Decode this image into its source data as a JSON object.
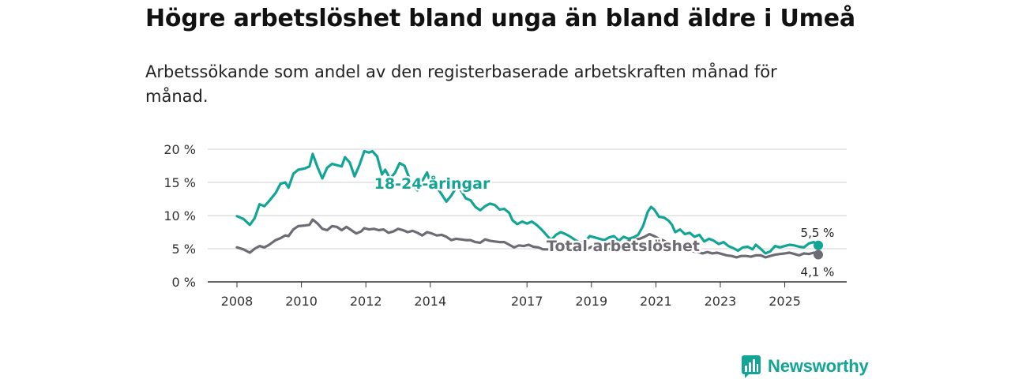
{
  "title": "Högre arbetslöshet bland unga än bland äldre i Umeå",
  "subtitle": "Arbetssökande som andel av den registerbaserade arbetskraften månad för månad.",
  "brand": {
    "name": "Newsworthy",
    "color": "#12a595"
  },
  "chart_data": {
    "type": "line",
    "title": "Högre arbetslöshet bland unga än bland äldre i Umeå",
    "xlabel": "",
    "ylabel": "",
    "x_range": [
      2008.0,
      2026.04
    ],
    "ylim": [
      0,
      20
    ],
    "yticks": [
      0,
      5,
      10,
      15,
      20
    ],
    "ytick_labels": [
      "0 %",
      "5 %",
      "10 %",
      "15 %",
      "20 %"
    ],
    "xticks": [
      2008,
      2010,
      2012,
      2014,
      2017,
      2019,
      2021,
      2023,
      2025
    ],
    "xtick_labels": [
      "2008",
      "2010",
      "2012",
      "2014",
      "2017",
      "2019",
      "2021",
      "2023",
      "2025"
    ],
    "grid": true,
    "series": [
      {
        "name": "18-24-åringar",
        "label": "18-24-åringar",
        "color": "#12a595",
        "end_label": "5,5 %",
        "end_value": 5.5,
        "points": [
          [
            2008.0,
            9.9
          ],
          [
            2008.2,
            9.5
          ],
          [
            2008.4,
            8.6
          ],
          [
            2008.55,
            9.6
          ],
          [
            2008.7,
            11.7
          ],
          [
            2008.85,
            11.4
          ],
          [
            2009.0,
            12.2
          ],
          [
            2009.2,
            13.4
          ],
          [
            2009.35,
            14.8
          ],
          [
            2009.5,
            15.0
          ],
          [
            2009.6,
            14.2
          ],
          [
            2009.75,
            16.3
          ],
          [
            2009.9,
            16.9
          ],
          [
            2010.1,
            17.1
          ],
          [
            2010.25,
            17.4
          ],
          [
            2010.35,
            19.3
          ],
          [
            2010.5,
            17.3
          ],
          [
            2010.65,
            15.6
          ],
          [
            2010.8,
            17.2
          ],
          [
            2010.95,
            17.8
          ],
          [
            2011.1,
            17.6
          ],
          [
            2011.25,
            17.4
          ],
          [
            2011.35,
            18.8
          ],
          [
            2011.5,
            18.0
          ],
          [
            2011.65,
            15.9
          ],
          [
            2011.8,
            17.6
          ],
          [
            2011.95,
            19.7
          ],
          [
            2012.1,
            19.5
          ],
          [
            2012.2,
            19.7
          ],
          [
            2012.35,
            18.9
          ],
          [
            2012.5,
            16.2
          ],
          [
            2012.6,
            16.9
          ],
          [
            2012.75,
            15.6
          ],
          [
            2012.9,
            16.4
          ],
          [
            2013.05,
            17.9
          ],
          [
            2013.2,
            17.5
          ],
          [
            2013.35,
            15.6
          ],
          [
            2013.5,
            14.4
          ],
          [
            2013.6,
            13.8
          ],
          [
            2013.75,
            15.2
          ],
          [
            2013.9,
            16.5
          ],
          [
            2014.0,
            15.0
          ],
          [
            2014.2,
            14.3
          ],
          [
            2014.35,
            13.2
          ],
          [
            2014.5,
            12.1
          ],
          [
            2014.65,
            13.0
          ],
          [
            2014.8,
            14.2
          ],
          [
            2014.95,
            13.8
          ],
          [
            2015.1,
            12.6
          ],
          [
            2015.25,
            12.3
          ],
          [
            2015.4,
            11.3
          ],
          [
            2015.55,
            10.8
          ],
          [
            2015.7,
            11.4
          ],
          [
            2015.85,
            11.8
          ],
          [
            2016.0,
            11.6
          ],
          [
            2016.15,
            10.9
          ],
          [
            2016.3,
            11.0
          ],
          [
            2016.45,
            10.4
          ],
          [
            2016.55,
            9.3
          ],
          [
            2016.7,
            8.7
          ],
          [
            2016.85,
            9.1
          ],
          [
            2017.0,
            8.8
          ],
          [
            2017.15,
            9.1
          ],
          [
            2017.3,
            8.6
          ],
          [
            2017.45,
            7.9
          ],
          [
            2017.6,
            7.1
          ],
          [
            2017.75,
            6.3
          ],
          [
            2017.9,
            7.1
          ],
          [
            2018.05,
            7.5
          ],
          [
            2018.2,
            7.2
          ],
          [
            2018.35,
            6.8
          ],
          [
            2018.5,
            6.3
          ],
          [
            2018.65,
            5.9
          ],
          [
            2018.8,
            6.1
          ],
          [
            2018.95,
            6.9
          ],
          [
            2019.1,
            6.7
          ],
          [
            2019.25,
            6.5
          ],
          [
            2019.4,
            6.3
          ],
          [
            2019.55,
            6.7
          ],
          [
            2019.7,
            6.9
          ],
          [
            2019.85,
            6.2
          ],
          [
            2020.0,
            6.8
          ],
          [
            2020.15,
            6.5
          ],
          [
            2020.3,
            6.7
          ],
          [
            2020.45,
            7.1
          ],
          [
            2020.6,
            8.4
          ],
          [
            2020.75,
            10.6
          ],
          [
            2020.85,
            11.3
          ],
          [
            2020.95,
            10.9
          ],
          [
            2021.1,
            9.8
          ],
          [
            2021.25,
            9.7
          ],
          [
            2021.4,
            9.2
          ],
          [
            2021.5,
            8.6
          ],
          [
            2021.6,
            7.5
          ],
          [
            2021.75,
            7.9
          ],
          [
            2021.9,
            7.2
          ],
          [
            2022.05,
            7.4
          ],
          [
            2022.2,
            6.8
          ],
          [
            2022.35,
            7.1
          ],
          [
            2022.5,
            6.1
          ],
          [
            2022.65,
            6.5
          ],
          [
            2022.8,
            6.2
          ],
          [
            2022.95,
            5.7
          ],
          [
            2023.1,
            6.0
          ],
          [
            2023.25,
            5.4
          ],
          [
            2023.4,
            5.1
          ],
          [
            2023.55,
            4.7
          ],
          [
            2023.7,
            5.2
          ],
          [
            2023.85,
            5.3
          ],
          [
            2024.0,
            4.9
          ],
          [
            2024.1,
            5.6
          ],
          [
            2024.25,
            5.0
          ],
          [
            2024.4,
            4.3
          ],
          [
            2024.55,
            4.6
          ],
          [
            2024.7,
            5.4
          ],
          [
            2024.85,
            5.2
          ],
          [
            2025.0,
            5.4
          ],
          [
            2025.15,
            5.6
          ],
          [
            2025.3,
            5.5
          ],
          [
            2025.45,
            5.3
          ],
          [
            2025.6,
            5.2
          ],
          [
            2025.75,
            5.8
          ],
          [
            2025.9,
            6.0
          ],
          [
            2026.04,
            5.5
          ]
        ]
      },
      {
        "name": "Total arbetslöshet",
        "label": "Total arbetslöshet",
        "color": "#6e6b74",
        "end_label": "4,1 %",
        "end_value": 4.1,
        "points": [
          [
            2008.0,
            5.2
          ],
          [
            2008.2,
            4.9
          ],
          [
            2008.4,
            4.4
          ],
          [
            2008.55,
            5.0
          ],
          [
            2008.7,
            5.4
          ],
          [
            2008.85,
            5.2
          ],
          [
            2009.0,
            5.6
          ],
          [
            2009.2,
            6.3
          ],
          [
            2009.35,
            6.6
          ],
          [
            2009.5,
            7.0
          ],
          [
            2009.6,
            6.9
          ],
          [
            2009.75,
            7.9
          ],
          [
            2009.9,
            8.4
          ],
          [
            2010.1,
            8.5
          ],
          [
            2010.25,
            8.6
          ],
          [
            2010.35,
            9.4
          ],
          [
            2010.5,
            8.8
          ],
          [
            2010.65,
            8.0
          ],
          [
            2010.8,
            7.8
          ],
          [
            2010.95,
            8.4
          ],
          [
            2011.1,
            8.3
          ],
          [
            2011.25,
            7.8
          ],
          [
            2011.4,
            8.3
          ],
          [
            2011.55,
            7.8
          ],
          [
            2011.7,
            7.3
          ],
          [
            2011.85,
            7.6
          ],
          [
            2011.95,
            8.1
          ],
          [
            2012.1,
            7.9
          ],
          [
            2012.25,
            8.0
          ],
          [
            2012.4,
            7.8
          ],
          [
            2012.55,
            7.9
          ],
          [
            2012.7,
            7.4
          ],
          [
            2012.85,
            7.6
          ],
          [
            2013.0,
            8.0
          ],
          [
            2013.15,
            7.8
          ],
          [
            2013.3,
            7.5
          ],
          [
            2013.45,
            7.7
          ],
          [
            2013.6,
            7.4
          ],
          [
            2013.75,
            7.0
          ],
          [
            2013.9,
            7.5
          ],
          [
            2014.05,
            7.3
          ],
          [
            2014.2,
            7.0
          ],
          [
            2014.35,
            7.1
          ],
          [
            2014.5,
            6.8
          ],
          [
            2014.65,
            6.3
          ],
          [
            2014.8,
            6.5
          ],
          [
            2014.95,
            6.4
          ],
          [
            2015.1,
            6.3
          ],
          [
            2015.25,
            6.3
          ],
          [
            2015.4,
            6.0
          ],
          [
            2015.55,
            5.9
          ],
          [
            2015.7,
            6.4
          ],
          [
            2015.85,
            6.2
          ],
          [
            2016.0,
            6.1
          ],
          [
            2016.15,
            6.0
          ],
          [
            2016.3,
            6.0
          ],
          [
            2016.45,
            5.6
          ],
          [
            2016.6,
            5.2
          ],
          [
            2016.75,
            5.5
          ],
          [
            2016.9,
            5.4
          ],
          [
            2017.05,
            5.6
          ],
          [
            2017.2,
            5.3
          ],
          [
            2017.35,
            5.2
          ],
          [
            2017.5,
            4.9
          ],
          [
            2017.65,
            4.9
          ],
          [
            2017.8,
            4.8
          ],
          [
            2017.95,
            5.0
          ],
          [
            2018.1,
            5.2
          ],
          [
            2018.25,
            5.0
          ],
          [
            2018.4,
            4.9
          ],
          [
            2018.55,
            4.7
          ],
          [
            2018.7,
            4.6
          ],
          [
            2018.85,
            4.9
          ],
          [
            2019.0,
            5.3
          ],
          [
            2019.15,
            5.1
          ],
          [
            2019.3,
            4.9
          ],
          [
            2019.45,
            4.8
          ],
          [
            2019.6,
            5.0
          ],
          [
            2019.75,
            5.1
          ],
          [
            2019.9,
            5.4
          ],
          [
            2020.05,
            5.9
          ],
          [
            2020.2,
            6.3
          ],
          [
            2020.35,
            6.4
          ],
          [
            2020.5,
            6.5
          ],
          [
            2020.65,
            6.8
          ],
          [
            2020.8,
            7.2
          ],
          [
            2020.95,
            6.9
          ],
          [
            2021.1,
            6.5
          ],
          [
            2021.25,
            6.2
          ],
          [
            2021.4,
            5.8
          ],
          [
            2021.55,
            5.6
          ],
          [
            2021.7,
            5.2
          ],
          [
            2021.85,
            5.0
          ],
          [
            2022.0,
            4.8
          ],
          [
            2022.15,
            4.6
          ],
          [
            2022.3,
            4.5
          ],
          [
            2022.45,
            4.3
          ],
          [
            2022.6,
            4.5
          ],
          [
            2022.75,
            4.3
          ],
          [
            2022.9,
            4.4
          ],
          [
            2023.05,
            4.2
          ],
          [
            2023.2,
            4.0
          ],
          [
            2023.35,
            3.9
          ],
          [
            2023.5,
            3.7
          ],
          [
            2023.65,
            3.9
          ],
          [
            2023.8,
            3.9
          ],
          [
            2023.95,
            3.8
          ],
          [
            2024.1,
            4.0
          ],
          [
            2024.25,
            4.0
          ],
          [
            2024.4,
            3.7
          ],
          [
            2024.55,
            3.9
          ],
          [
            2024.7,
            4.1
          ],
          [
            2024.85,
            4.2
          ],
          [
            2025.0,
            4.3
          ],
          [
            2025.15,
            4.4
          ],
          [
            2025.3,
            4.2
          ],
          [
            2025.45,
            4.0
          ],
          [
            2025.6,
            4.3
          ],
          [
            2025.75,
            4.2
          ],
          [
            2025.9,
            4.4
          ],
          [
            2026.04,
            4.1
          ]
        ]
      }
    ]
  }
}
